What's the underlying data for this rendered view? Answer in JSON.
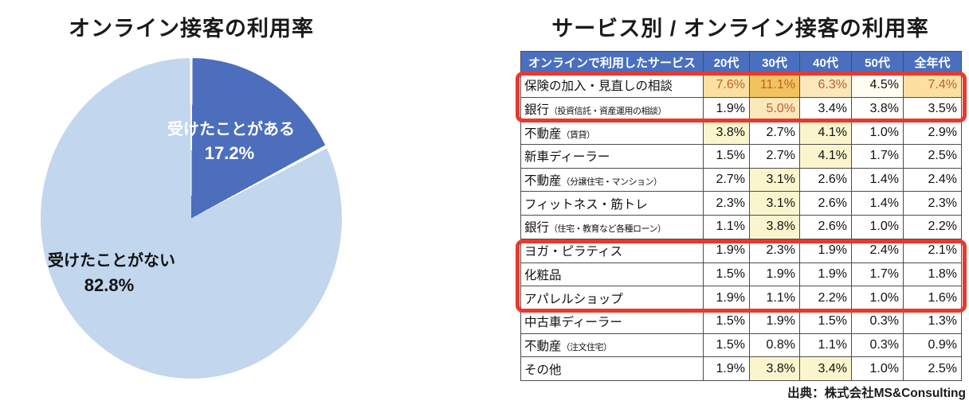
{
  "colors": {
    "pie_dark": "#4C6EBD",
    "pie_light": "#C2D6EE",
    "header_bg": "#4A6FBE",
    "header_text": "#FFFFFF",
    "highlight_red": "#E8392F",
    "amber_strong": "#F1C25F",
    "amber_mid": "#FBE0A2",
    "amber_light": "#FAE7BA",
    "amber_faint": "#FFFDF2",
    "yellow_light": "#FBF5CE",
    "orange_text": "#C2602C",
    "grid_border": "#4D4D4D"
  },
  "pie_panel": {
    "title": "オンライン接客の利用率",
    "slices": [
      {
        "label": "受けたことがある",
        "value": 17.2,
        "color": "#4C6EBD"
      },
      {
        "label": "受けたことがない",
        "value": 82.8,
        "color": "#C2D6EE"
      }
    ],
    "labels": {
      "yes_label": "受けたことがある",
      "yes_value": "17.2%",
      "no_label": "受けたことがない",
      "no_value": "82.8%"
    }
  },
  "table_panel": {
    "title": "サービス別 / オンライン接客の利用率",
    "source": "出典：株式会社MS&Consulting",
    "columns": [
      "オンラインで利用したサービス",
      "20代",
      "30代",
      "40代",
      "50代",
      "全年代"
    ],
    "rows": [
      {
        "service": "保険の加入・見直しの相談",
        "note": "",
        "cells": [
          {
            "v": "7.6%",
            "hl": "amber_mid",
            "fg": "orange"
          },
          {
            "v": "11.1%",
            "hl": "amber_strong",
            "fg": "orange"
          },
          {
            "v": "6.3%",
            "hl": "amber_light",
            "fg": "orange"
          },
          {
            "v": "4.5%",
            "hl": "amber_faint",
            "fg": null
          },
          {
            "v": "7.4%",
            "hl": "amber_mid",
            "fg": "orange"
          }
        ]
      },
      {
        "service": "銀行",
        "note": "（投資信託・資産運用の相談）",
        "cells": [
          {
            "v": "1.9%",
            "hl": null,
            "fg": null
          },
          {
            "v": "5.0%",
            "hl": "amber_light",
            "fg": "orange"
          },
          {
            "v": "3.4%",
            "hl": null,
            "fg": null
          },
          {
            "v": "3.8%",
            "hl": null,
            "fg": null
          },
          {
            "v": "3.5%",
            "hl": null,
            "fg": null
          }
        ]
      },
      {
        "service": "不動産",
        "note": "（賃貸）",
        "cells": [
          {
            "v": "3.8%",
            "hl": "yellow_light",
            "fg": null
          },
          {
            "v": "2.7%",
            "hl": null,
            "fg": null
          },
          {
            "v": "4.1%",
            "hl": "yellow_light",
            "fg": null
          },
          {
            "v": "1.0%",
            "hl": null,
            "fg": null
          },
          {
            "v": "2.9%",
            "hl": null,
            "fg": null
          }
        ]
      },
      {
        "service": "新車ディーラー",
        "note": "",
        "cells": [
          {
            "v": "1.5%",
            "hl": null,
            "fg": null
          },
          {
            "v": "2.7%",
            "hl": null,
            "fg": null
          },
          {
            "v": "4.1%",
            "hl": "yellow_light",
            "fg": null
          },
          {
            "v": "1.7%",
            "hl": null,
            "fg": null
          },
          {
            "v": "2.5%",
            "hl": null,
            "fg": null
          }
        ]
      },
      {
        "service": "不動産",
        "note": "（分譲住宅・マンション）",
        "cells": [
          {
            "v": "2.7%",
            "hl": null,
            "fg": null
          },
          {
            "v": "3.1%",
            "hl": "yellow_light",
            "fg": null
          },
          {
            "v": "2.6%",
            "hl": null,
            "fg": null
          },
          {
            "v": "1.4%",
            "hl": null,
            "fg": null
          },
          {
            "v": "2.4%",
            "hl": null,
            "fg": null
          }
        ]
      },
      {
        "service": "フィットネス・筋トレ",
        "note": "",
        "cells": [
          {
            "v": "2.3%",
            "hl": null,
            "fg": null
          },
          {
            "v": "3.1%",
            "hl": "yellow_light",
            "fg": null
          },
          {
            "v": "2.6%",
            "hl": null,
            "fg": null
          },
          {
            "v": "1.4%",
            "hl": null,
            "fg": null
          },
          {
            "v": "2.3%",
            "hl": null,
            "fg": null
          }
        ]
      },
      {
        "service": "銀行",
        "note": "（住宅・教育など各種ローン）",
        "cells": [
          {
            "v": "1.1%",
            "hl": null,
            "fg": null
          },
          {
            "v": "3.8%",
            "hl": "yellow_light",
            "fg": null
          },
          {
            "v": "2.6%",
            "hl": null,
            "fg": null
          },
          {
            "v": "1.0%",
            "hl": null,
            "fg": null
          },
          {
            "v": "2.2%",
            "hl": null,
            "fg": null
          }
        ]
      },
      {
        "service": "ヨガ・ピラティス",
        "note": "",
        "cells": [
          {
            "v": "1.9%",
            "hl": null,
            "fg": null
          },
          {
            "v": "2.3%",
            "hl": null,
            "fg": null
          },
          {
            "v": "1.9%",
            "hl": null,
            "fg": null
          },
          {
            "v": "2.4%",
            "hl": null,
            "fg": null
          },
          {
            "v": "2.1%",
            "hl": null,
            "fg": null
          }
        ]
      },
      {
        "service": "化粧品",
        "note": "",
        "cells": [
          {
            "v": "1.5%",
            "hl": null,
            "fg": null
          },
          {
            "v": "1.9%",
            "hl": null,
            "fg": null
          },
          {
            "v": "1.9%",
            "hl": null,
            "fg": null
          },
          {
            "v": "1.7%",
            "hl": null,
            "fg": null
          },
          {
            "v": "1.8%",
            "hl": null,
            "fg": null
          }
        ]
      },
      {
        "service": "アパレルショップ",
        "note": "",
        "cells": [
          {
            "v": "1.9%",
            "hl": null,
            "fg": null
          },
          {
            "v": "1.1%",
            "hl": null,
            "fg": null
          },
          {
            "v": "2.2%",
            "hl": null,
            "fg": null
          },
          {
            "v": "1.0%",
            "hl": null,
            "fg": null
          },
          {
            "v": "1.6%",
            "hl": null,
            "fg": null
          }
        ]
      },
      {
        "service": "中古車ディーラー",
        "note": "",
        "cells": [
          {
            "v": "1.5%",
            "hl": null,
            "fg": null
          },
          {
            "v": "1.9%",
            "hl": null,
            "fg": null
          },
          {
            "v": "1.5%",
            "hl": null,
            "fg": null
          },
          {
            "v": "0.3%",
            "hl": null,
            "fg": null
          },
          {
            "v": "1.3%",
            "hl": null,
            "fg": null
          }
        ]
      },
      {
        "service": "不動産",
        "note": "（注文住宅）",
        "cells": [
          {
            "v": "1.5%",
            "hl": null,
            "fg": null
          },
          {
            "v": "0.8%",
            "hl": null,
            "fg": null
          },
          {
            "v": "1.1%",
            "hl": null,
            "fg": null
          },
          {
            "v": "0.3%",
            "hl": null,
            "fg": null
          },
          {
            "v": "0.9%",
            "hl": null,
            "fg": null
          }
        ]
      },
      {
        "service": "その他",
        "note": "",
        "cells": [
          {
            "v": "1.9%",
            "hl": null,
            "fg": null
          },
          {
            "v": "3.8%",
            "hl": "yellow_light",
            "fg": null
          },
          {
            "v": "3.4%",
            "hl": "yellow_light",
            "fg": null
          },
          {
            "v": "1.0%",
            "hl": null,
            "fg": null
          },
          {
            "v": "2.5%",
            "hl": null,
            "fg": null
          }
        ]
      }
    ]
  },
  "chart_data": [
    {
      "type": "pie",
      "title": "オンライン接客の利用率",
      "labels": [
        "受けたことがある",
        "受けたことがない"
      ],
      "values": [
        17.2,
        82.8
      ],
      "colors": [
        "#4C6EBD",
        "#C2D6EE"
      ],
      "start_angle_deg": 0,
      "direction": "clockwise",
      "legend_position": "inside-slices"
    },
    {
      "type": "table",
      "title": "サービス別 / オンライン接客の利用率",
      "columns": [
        "オンラインで利用したサービス",
        "20代",
        "30代",
        "40代",
        "50代",
        "全年代"
      ],
      "rows": [
        [
          "保険の加入・見直しの相談",
          7.6,
          11.1,
          6.3,
          4.5,
          7.4
        ],
        [
          "銀行（投資信託・資産運用の相談）",
          1.9,
          5.0,
          3.4,
          3.8,
          3.5
        ],
        [
          "不動産（賃貸）",
          3.8,
          2.7,
          4.1,
          1.0,
          2.9
        ],
        [
          "新車ディーラー",
          1.5,
          2.7,
          4.1,
          1.7,
          2.5
        ],
        [
          "不動産（分譲住宅・マンション）",
          2.7,
          3.1,
          2.6,
          1.4,
          2.4
        ],
        [
          "フィットネス・筋トレ",
          2.3,
          3.1,
          2.6,
          1.4,
          2.3
        ],
        [
          "銀行（住宅・教育など各種ローン）",
          1.1,
          3.8,
          2.6,
          1.0,
          2.2
        ],
        [
          "ヨガ・ピラティス",
          1.9,
          2.3,
          1.9,
          2.4,
          2.1
        ],
        [
          "化粧品",
          1.5,
          1.9,
          1.9,
          1.7,
          1.8
        ],
        [
          "アパレルショップ",
          1.9,
          1.1,
          2.2,
          1.0,
          1.6
        ],
        [
          "中古車ディーラー",
          1.5,
          1.9,
          1.5,
          0.3,
          1.3
        ],
        [
          "不動産（注文住宅）",
          1.5,
          0.8,
          1.1,
          0.3,
          0.9
        ],
        [
          "その他",
          1.9,
          3.8,
          3.4,
          1.0,
          2.5
        ]
      ],
      "units": "%",
      "annotations": [
        "red box around rows 1-2 (保険 / 銀行 投資信託)",
        "red box around rows 8-10 (ヨガ・ピラティス / 化粧品 / アパレルショップ)"
      ],
      "source": "出典：株式会社MS&Consulting"
    }
  ]
}
